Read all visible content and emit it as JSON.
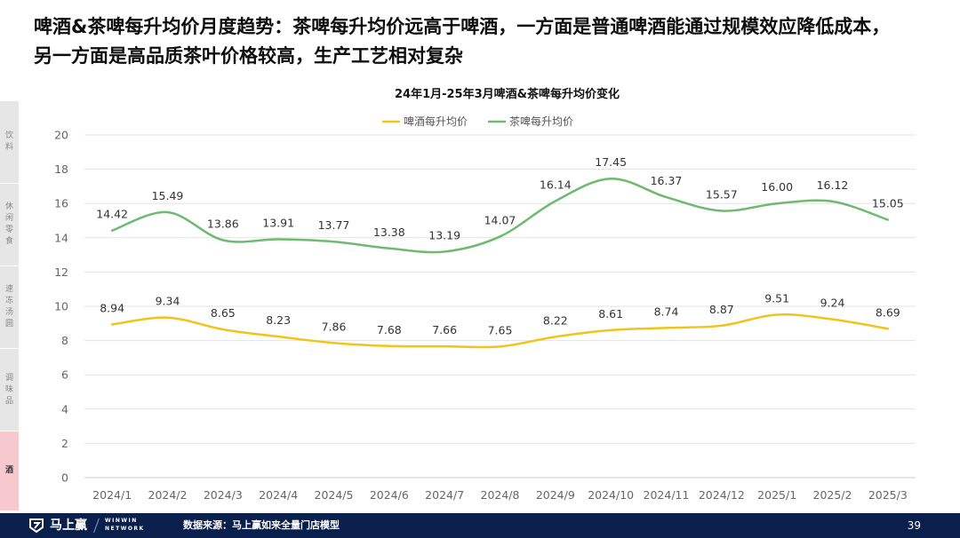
{
  "headline": {
    "line1": "啤酒&茶啤每升均价月度趋势：茶啤每升均价远高于啤酒，一方面是普通啤酒能通过规模效应降低成本，",
    "line2": "另一方面是高品质茶叶价格较高，生产工艺相对复杂"
  },
  "sidenav": [
    {
      "label": "饮料"
    },
    {
      "label": "休闲零食"
    },
    {
      "label": "速冻汤圆"
    },
    {
      "label": "调味品"
    },
    {
      "label": "酒",
      "active": true
    }
  ],
  "chart_data": {
    "type": "line",
    "title": "24年1月-25年3月啤酒&茶啤每升均价变化",
    "categories": [
      "2024/1",
      "2024/2",
      "2024/3",
      "2024/4",
      "2024/5",
      "2024/6",
      "2024/7",
      "2024/8",
      "2024/9",
      "2024/10",
      "2024/11",
      "2024/12",
      "2025/1",
      "2025/2",
      "2025/3"
    ],
    "series": [
      {
        "name": "啤酒每升均价",
        "color": "#f2c318",
        "values": [
          8.94,
          9.34,
          8.65,
          8.23,
          7.86,
          7.68,
          7.66,
          7.65,
          8.22,
          8.61,
          8.74,
          8.87,
          9.51,
          9.24,
          8.69
        ]
      },
      {
        "name": "茶啤每升均价",
        "color": "#6dba70",
        "values": [
          14.42,
          15.49,
          13.86,
          13.91,
          13.77,
          13.38,
          13.19,
          14.07,
          16.14,
          17.45,
          16.37,
          15.57,
          16.0,
          16.12,
          15.05
        ]
      }
    ],
    "ylim": [
      0,
      20
    ],
    "yticks": [
      0,
      2,
      4,
      6,
      8,
      10,
      12,
      14,
      16,
      18,
      20
    ],
    "grid": true,
    "legend": "top-center",
    "smooth": true
  },
  "footer": {
    "brand": "马上赢",
    "brand_en_1": "WINWIN",
    "brand_en_2": "NETWORK",
    "source": "数据来源：马上赢如来全量门店模型",
    "page": "39"
  }
}
